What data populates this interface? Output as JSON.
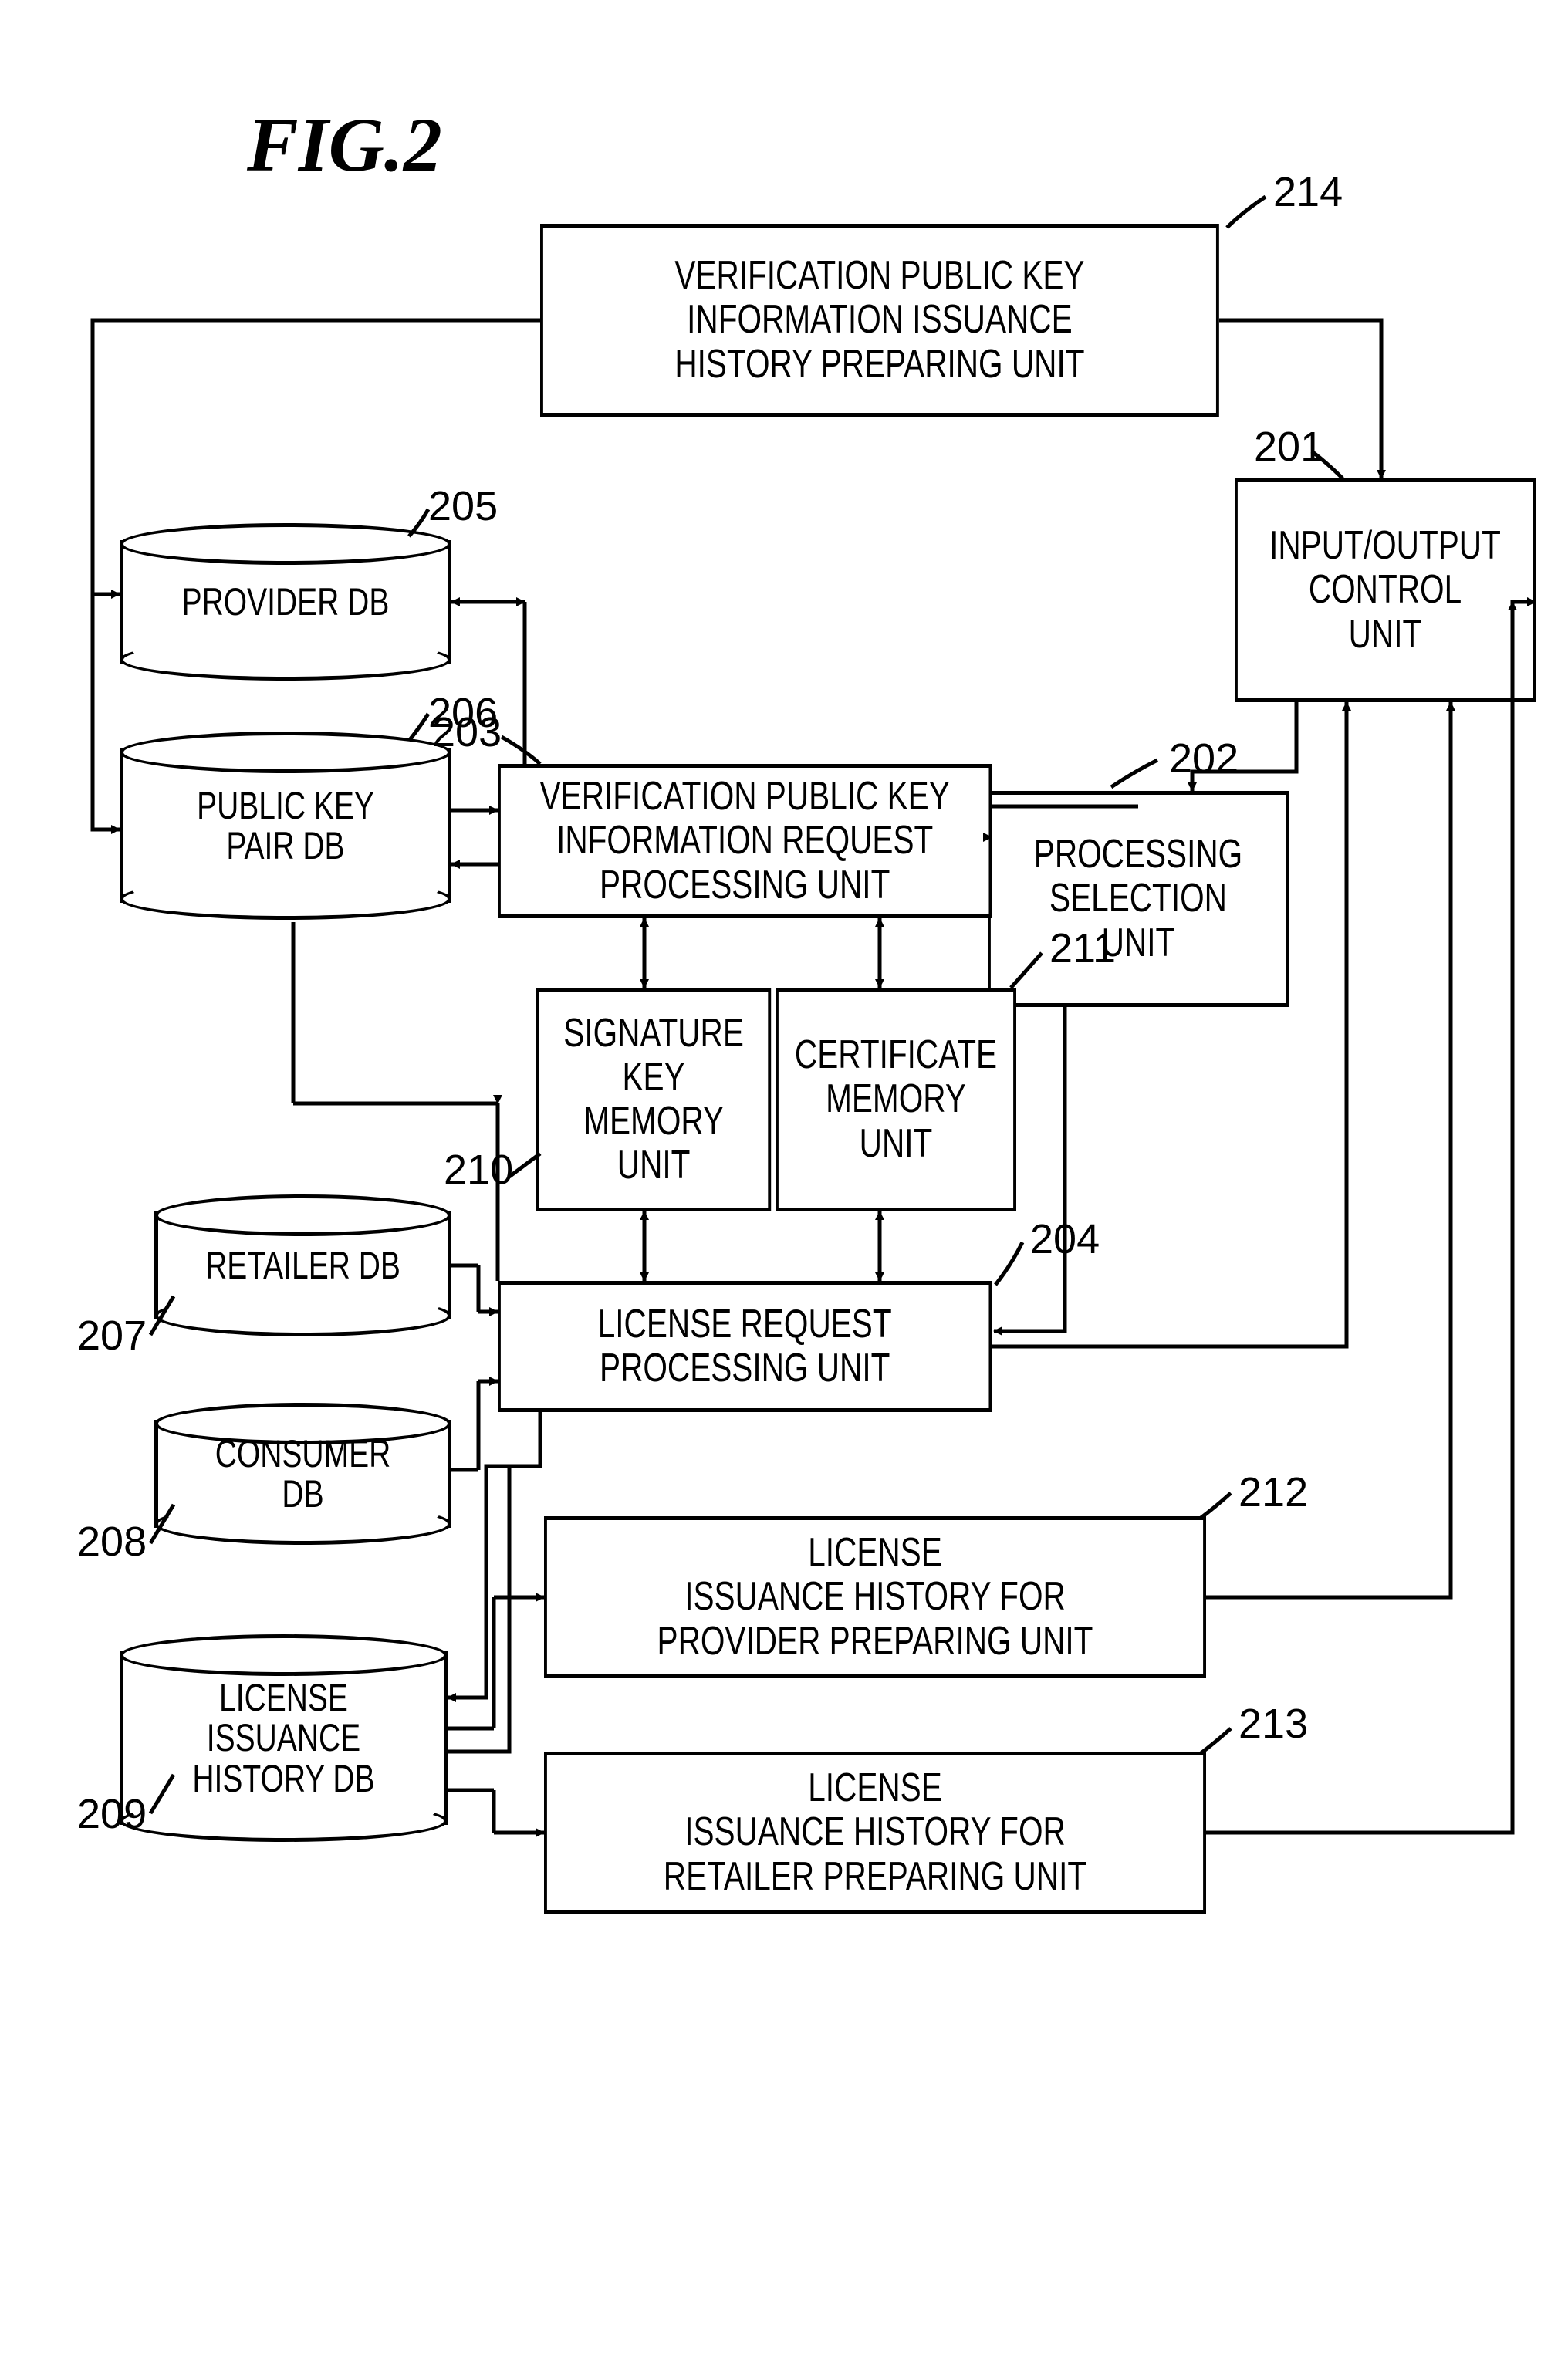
{
  "figure_title": "FIG.2",
  "stroke_color": "#000000",
  "stroke_width": 5,
  "boxes": {
    "b201": {
      "label": "INPUT/OUTPUT\nCONTROL\nUNIT",
      "callout": "201"
    },
    "b202": {
      "label": "PROCESSING\nSELECTION\nUNIT",
      "callout": "202"
    },
    "b203": {
      "label": "VERIFICATION PUBLIC KEY\nINFORMATION REQUEST\nPROCESSING UNIT",
      "callout": "203"
    },
    "b204": {
      "label": "LICENSE REQUEST\nPROCESSING UNIT",
      "callout": "204"
    },
    "b210": {
      "label": "SIGNATURE\nKEY\nMEMORY\nUNIT",
      "callout": "210"
    },
    "b211": {
      "label": "CERTIFICATE\nMEMORY\nUNIT",
      "callout": "211"
    },
    "b212": {
      "label": "LICENSE\nISSUANCE HISTORY FOR\nPROVIDER PREPARING UNIT",
      "callout": "212"
    },
    "b213": {
      "label": "LICENSE\nISSUANCE HISTORY FOR\nRETAILER PREPARING UNIT",
      "callout": "213"
    },
    "b214": {
      "label": "VERIFICATION PUBLIC KEY\nINFORMATION ISSUANCE\nHISTORY PREPARING UNIT",
      "callout": "214"
    }
  },
  "dbs": {
    "d205": {
      "label": "PROVIDER DB",
      "callout": "205"
    },
    "d206": {
      "label": "PUBLIC KEY\nPAIR DB",
      "callout": "206"
    },
    "d207": {
      "label": "RETAILER DB",
      "callout": "207"
    },
    "d208": {
      "label": "CONSUMER DB",
      "callout": "208"
    },
    "d209": {
      "label": "LICENSE ISSUANCE\nHISTORY DB",
      "callout": "209"
    }
  }
}
